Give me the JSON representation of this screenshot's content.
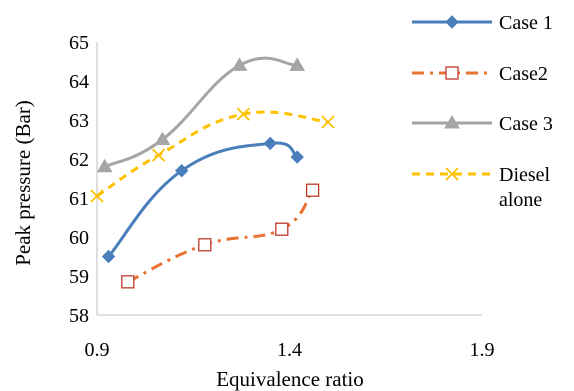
{
  "chart_data": {
    "type": "line",
    "title": "",
    "xlabel": "Equivalence ratio",
    "ylabel": "Peak pressure (Bar)",
    "xlim": [
      0.9,
      1.9
    ],
    "ylim": [
      58,
      65
    ],
    "xticks": [
      0.9,
      1.4,
      1.9
    ],
    "xtick_labels": [
      "0.9",
      "1.4",
      "1.9"
    ],
    "yticks": [
      58,
      59,
      60,
      61,
      62,
      63,
      64,
      65
    ],
    "ytick_labels": [
      "58",
      "59",
      "60",
      "61",
      "62",
      "63",
      "64",
      "65"
    ],
    "grid": false,
    "legend_position": "right",
    "series": [
      {
        "name": "Case 1",
        "color": "#4A7EBB",
        "marker": "diamond",
        "line_style": "solid",
        "smooth": true,
        "x": [
          0.93,
          1.12,
          1.35,
          1.42
        ],
        "y": [
          59.5,
          61.7,
          62.4,
          62.05
        ]
      },
      {
        "name": "Case2",
        "color": "#E97132",
        "marker": "open-square",
        "line_style": "dash-dot",
        "smooth": true,
        "x": [
          0.98,
          1.18,
          1.38,
          1.46
        ],
        "y": [
          58.85,
          59.8,
          60.2,
          61.2
        ]
      },
      {
        "name": "Case 3",
        "color": "#A5A5A5",
        "marker": "triangle",
        "line_style": "solid",
        "smooth": true,
        "x": [
          0.92,
          1.07,
          1.27,
          1.42
        ],
        "y": [
          61.8,
          62.5,
          64.4,
          64.4
        ]
      },
      {
        "name": "Diesel alone",
        "legend_lines": [
          "Diesel",
          "alone"
        ],
        "color": "#FFC000",
        "marker": "x",
        "line_style": "dashed",
        "smooth": true,
        "x": [
          0.9,
          1.06,
          1.28,
          1.5
        ],
        "y": [
          61.05,
          62.1,
          63.15,
          62.95
        ]
      }
    ]
  }
}
